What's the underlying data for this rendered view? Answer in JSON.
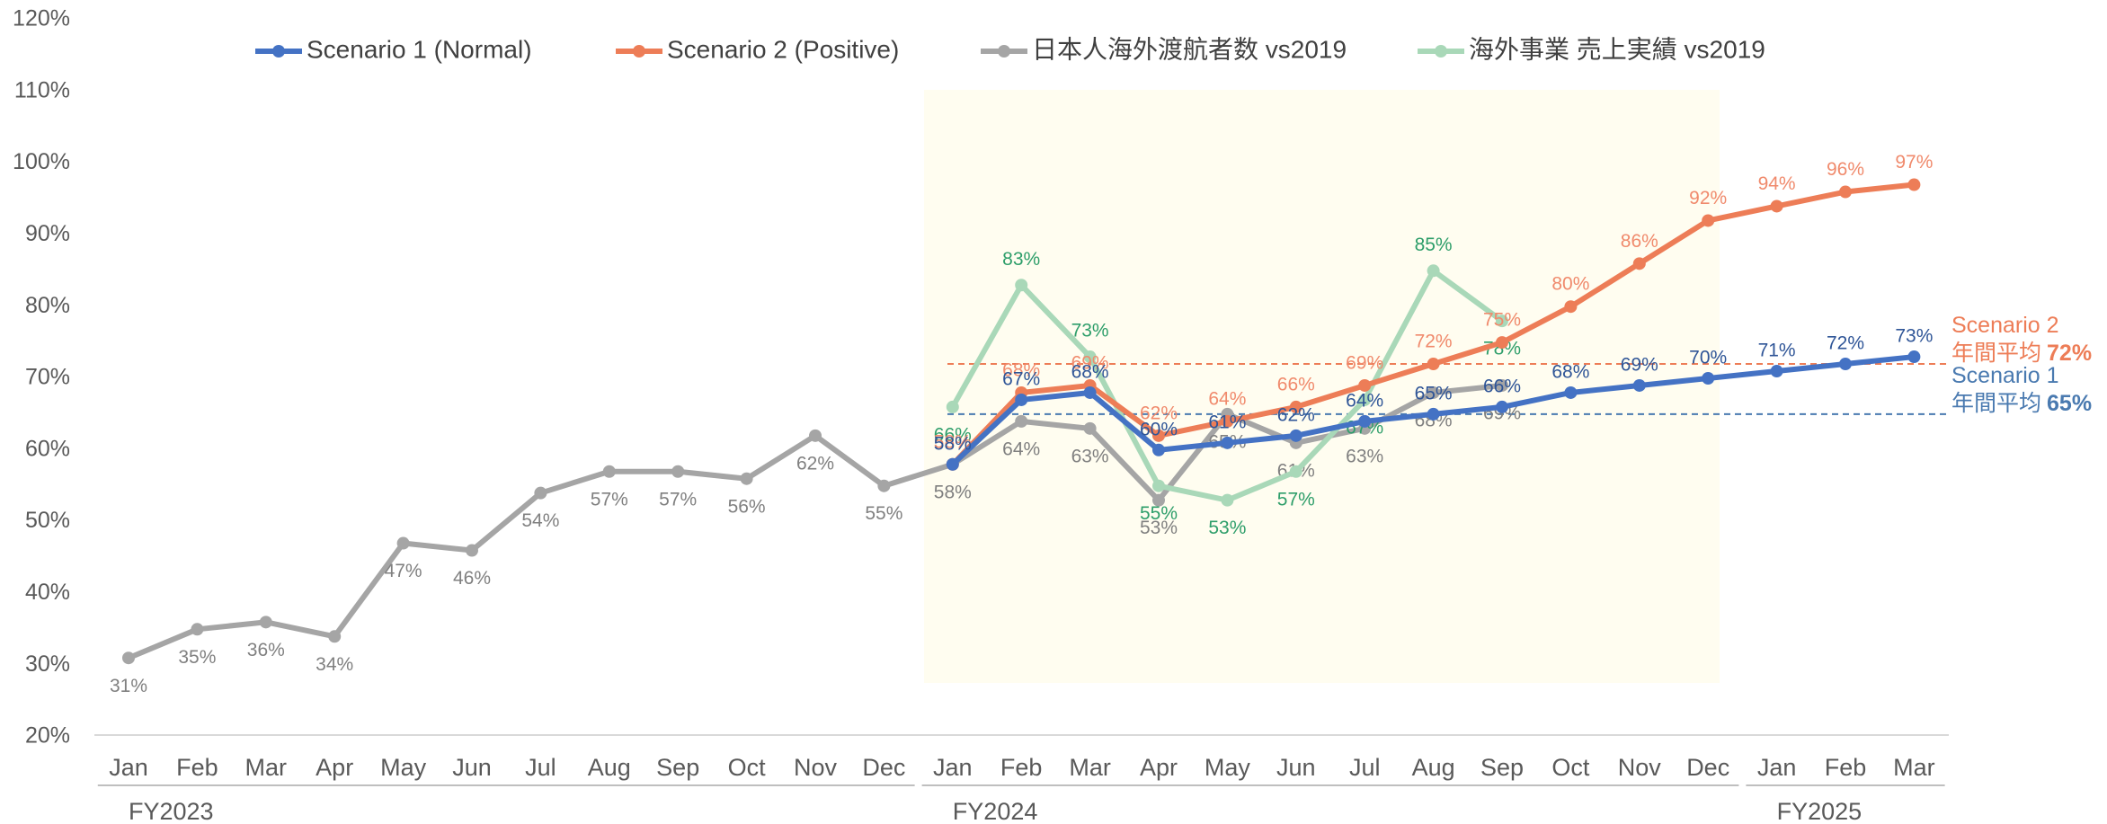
{
  "chart_data": {
    "type": "line",
    "categories": [
      "Jan",
      "Feb",
      "Mar",
      "Apr",
      "May",
      "Jun",
      "Jul",
      "Aug",
      "Sep",
      "Oct",
      "Nov",
      "Dec",
      "Jan",
      "Feb",
      "Mar",
      "Apr",
      "May",
      "Jun",
      "Jul",
      "Aug",
      "Sep",
      "Oct",
      "Nov",
      "Dec",
      "Jan",
      "Feb",
      "Mar"
    ],
    "groups": [
      {
        "label": "FY2023",
        "count": 12
      },
      {
        "label": "FY2024",
        "count": 12
      },
      {
        "label": "FY2025",
        "count": 3
      }
    ],
    "ylim": [
      20,
      120
    ],
    "yticks": [
      {
        "value": 20,
        "label": "20%"
      },
      {
        "value": 30,
        "label": "30%"
      },
      {
        "value": 40,
        "label": "40%"
      },
      {
        "value": 50,
        "label": "50%"
      },
      {
        "value": 60,
        "label": "60%"
      },
      {
        "value": 70,
        "label": "70%"
      },
      {
        "value": 80,
        "label": "80%"
      },
      {
        "value": 90,
        "label": "90%"
      },
      {
        "value": 100,
        "label": "100%"
      },
      {
        "value": 110,
        "label": "110%"
      },
      {
        "value": 120,
        "label": "120%"
      }
    ],
    "grid": false,
    "legend": "top",
    "series": [
      {
        "name": "Scenario 1 (Normal)",
        "color": "#4472c4",
        "label_color": "#2f5597",
        "values": [
          null,
          null,
          null,
          null,
          null,
          null,
          null,
          null,
          null,
          null,
          null,
          null,
          58,
          67,
          68,
          60,
          61,
          62,
          64,
          65,
          66,
          68,
          69,
          70,
          71,
          72,
          73
        ],
        "value_labels": [
          null,
          null,
          null,
          null,
          null,
          null,
          null,
          null,
          null,
          null,
          null,
          null,
          "58%",
          "67%",
          "68%",
          "60%",
          "61%",
          "62%",
          "64%",
          "65%",
          "66%",
          "68%",
          "69%",
          "70%",
          "71%",
          "72%",
          "73%"
        ]
      },
      {
        "name": "Scenario 2 (Positive)",
        "color": "#ed7d57",
        "label_color": "#f08a6c",
        "values": [
          null,
          null,
          null,
          null,
          null,
          null,
          null,
          null,
          null,
          null,
          null,
          null,
          58,
          68,
          69,
          62,
          64,
          66,
          69,
          72,
          75,
          80,
          86,
          92,
          94,
          96,
          97
        ],
        "value_labels": [
          null,
          null,
          null,
          null,
          null,
          null,
          null,
          null,
          null,
          null,
          null,
          null,
          "58%",
          "68%",
          "69%",
          "62%",
          "64%",
          "66%",
          "69%",
          "72%",
          "75%",
          "80%",
          "86%",
          "92%",
          "94%",
          "96%",
          "97%"
        ]
      },
      {
        "name": "日本人海外渡航者数 vs2019",
        "color": "#a5a5a5",
        "label_color": "#808080",
        "values": [
          31,
          35,
          36,
          34,
          47,
          46,
          54,
          57,
          57,
          56,
          62,
          55,
          58,
          64,
          63,
          53,
          65,
          61,
          63,
          68,
          69,
          null,
          null,
          null,
          null,
          null,
          null
        ],
        "value_labels": [
          "31%",
          "35%",
          "36%",
          "34%",
          "47%",
          "46%",
          "54%",
          "57%",
          "57%",
          "56%",
          "62%",
          "55%",
          "58%",
          "64%",
          "63%",
          "53%",
          "65%",
          "61%",
          "63%",
          "68%",
          "69%",
          null,
          null,
          null,
          null,
          null,
          null
        ]
      },
      {
        "name": "海外事業 売上実績 vs2019",
        "color": "#a9d8b8",
        "label_color": "#2e9e6a",
        "values": [
          null,
          null,
          null,
          null,
          null,
          null,
          null,
          null,
          null,
          null,
          null,
          null,
          66,
          83,
          73,
          55,
          53,
          57,
          67,
          85,
          78,
          null,
          null,
          null,
          null,
          null,
          null
        ],
        "value_labels": [
          null,
          null,
          null,
          null,
          null,
          null,
          null,
          null,
          null,
          null,
          null,
          null,
          "66%",
          "83%",
          "73%",
          "55%",
          "53%",
          "57%",
          "67%",
          "85%",
          "78%",
          null,
          null,
          null,
          null,
          null,
          null
        ]
      }
    ],
    "reference_lines": [
      {
        "name": "Scenario 2",
        "label": "年間平均",
        "value": 72,
        "value_label": "72%",
        "color": "#ed7d57"
      },
      {
        "name": "Scenario 1",
        "label": "年間平均",
        "value": 65,
        "value_label": "65%",
        "color": "#4a7ab0"
      }
    ]
  }
}
